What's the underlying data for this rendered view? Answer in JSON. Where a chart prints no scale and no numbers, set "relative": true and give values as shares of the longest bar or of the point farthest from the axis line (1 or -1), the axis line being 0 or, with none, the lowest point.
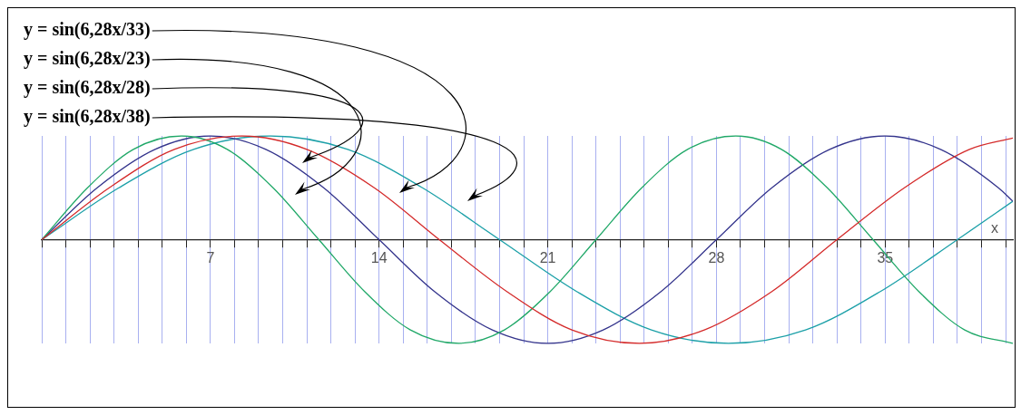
{
  "chart_data": {
    "type": "line",
    "relative": true,
    "xlabel": "x",
    "xlim": [
      0,
      40.3
    ],
    "xticks": [
      {
        "value": 0,
        "label": null
      },
      {
        "value": 1,
        "label": null
      },
      {
        "value": 2,
        "label": null
      },
      {
        "value": 3,
        "label": null
      },
      {
        "value": 4,
        "label": null
      },
      {
        "value": 5,
        "label": null
      },
      {
        "value": 6,
        "label": null
      },
      7,
      {
        "value": 8,
        "label": null
      },
      {
        "value": 9,
        "label": null
      },
      {
        "value": 10,
        "label": null
      },
      {
        "value": 11,
        "label": null
      },
      {
        "value": 12,
        "label": null
      },
      {
        "value": 13,
        "label": null
      },
      14,
      {
        "value": 15,
        "label": null
      },
      {
        "value": 16,
        "label": null
      },
      {
        "value": 17,
        "label": null
      },
      {
        "value": 18,
        "label": null
      },
      {
        "value": 19,
        "label": null
      },
      {
        "value": 20,
        "label": null
      },
      21,
      {
        "value": 22,
        "label": null
      },
      {
        "value": 23,
        "label": null
      },
      {
        "value": 24,
        "label": null
      },
      {
        "value": 25,
        "label": null
      },
      {
        "value": 26,
        "label": null
      },
      {
        "value": 27,
        "label": null
      },
      28,
      {
        "value": 29,
        "label": null
      },
      {
        "value": 30,
        "label": null
      },
      {
        "value": 31,
        "label": null
      },
      {
        "value": 32,
        "label": null
      },
      {
        "value": 33,
        "label": null
      },
      {
        "value": 34,
        "label": null
      },
      35,
      {
        "value": 36,
        "label": null
      },
      {
        "value": 37,
        "label": null
      },
      {
        "value": 38,
        "label": null
      },
      {
        "value": 39,
        "label": null
      },
      {
        "value": 40,
        "label": null
      }
    ],
    "grid": "x",
    "marker": "none",
    "line_style": "solid",
    "series": [
      {
        "color": "#d42a2a",
        "x": [
          0,
          2.8,
          5.5,
          8.3,
          11,
          13.8,
          16.5,
          19.3,
          22,
          24.8,
          27.5,
          30.3,
          33,
          35.8,
          38.5,
          40.3
        ],
        "values": [
          0,
          0.5,
          0.87,
          1,
          0.87,
          0.5,
          0,
          -0.5,
          -0.87,
          -1,
          -0.87,
          -0.5,
          0,
          0.5,
          0.87,
          0.98
        ]
      },
      {
        "color": "#20a868",
        "x": [
          0,
          1.9,
          3.8,
          5.8,
          7.7,
          9.6,
          11.5,
          13.4,
          15.3,
          17.3,
          19.2,
          21.1,
          23,
          24.9,
          26.8,
          28.8,
          30.7,
          32.6,
          34.5,
          36.4,
          38.3,
          40.3
        ],
        "values": [
          0,
          0.5,
          0.87,
          1,
          0.87,
          0.5,
          0,
          -0.5,
          -0.87,
          -1,
          -0.87,
          -0.5,
          0,
          0.5,
          0.87,
          1,
          0.87,
          0.5,
          0,
          -0.5,
          -0.87,
          -1
        ]
      },
      {
        "color": "#34348c",
        "x": [
          0,
          2.3,
          4.7,
          7,
          9.3,
          11.7,
          14,
          16.3,
          18.7,
          21,
          23.3,
          25.7,
          28,
          30.3,
          32.7,
          35,
          37.3,
          39.7,
          40.3
        ],
        "values": [
          0,
          0.5,
          0.87,
          1,
          0.87,
          0.5,
          0,
          -0.5,
          -0.87,
          -1,
          -0.87,
          -0.5,
          0,
          0.5,
          0.87,
          1,
          0.87,
          0.5,
          0.37
        ]
      },
      {
        "color": "#1ca0a8",
        "x": [
          0,
          3.2,
          6.3,
          9.5,
          12.7,
          15.8,
          19,
          22.2,
          25.3,
          28.5,
          31.7,
          34.8,
          38,
          40.3
        ],
        "values": [
          0,
          0.5,
          0.87,
          1,
          0.87,
          0.5,
          0,
          -0.5,
          -0.87,
          -1,
          -0.87,
          -0.5,
          0,
          0.37
        ]
      }
    ],
    "annotations": [
      "y = sin(6,28x/33)",
      "y = sin(6,28x/23)",
      "y = sin(6,28x/28)",
      "y = sin(6,28x/38)"
    ]
  }
}
